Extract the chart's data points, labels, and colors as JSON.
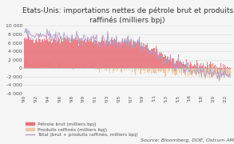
{
  "title": "Etats-Unis: importations nettes de pétrole brut et produits\nraffinés (milliers bpj)",
  "source": "Source: Bloomberg, DOE, Ostrum AM",
  "ylim": [
    -6000,
    10000
  ],
  "yticks": [
    -6000,
    -4000,
    -2000,
    0,
    2000,
    4000,
    6000,
    8000,
    10000
  ],
  "ytick_labels": [
    "-6 000",
    "-4 000",
    "-2 000",
    "0",
    "2 000",
    "4 000",
    "6 000",
    "8 000",
    "10 000"
  ],
  "bar_color_crude": "#e8747c",
  "bar_color_refined": "#f0c8a8",
  "line_color_total": "#b09cc8",
  "legend_crude": "Pétrole brut (milliers bpj)",
  "legend_refined": "Produits raffinés (milliers bpj)",
  "legend_total": "Total (brut + produits raffinés, milliers bpj)",
  "title_fontsize": 6.5,
  "axis_fontsize": 4.5,
  "legend_fontsize": 4.2,
  "source_fontsize": 4.5,
  "background_color": "#f5f5f5",
  "plot_bg_color": "#f5f5f5",
  "n_points": 280
}
